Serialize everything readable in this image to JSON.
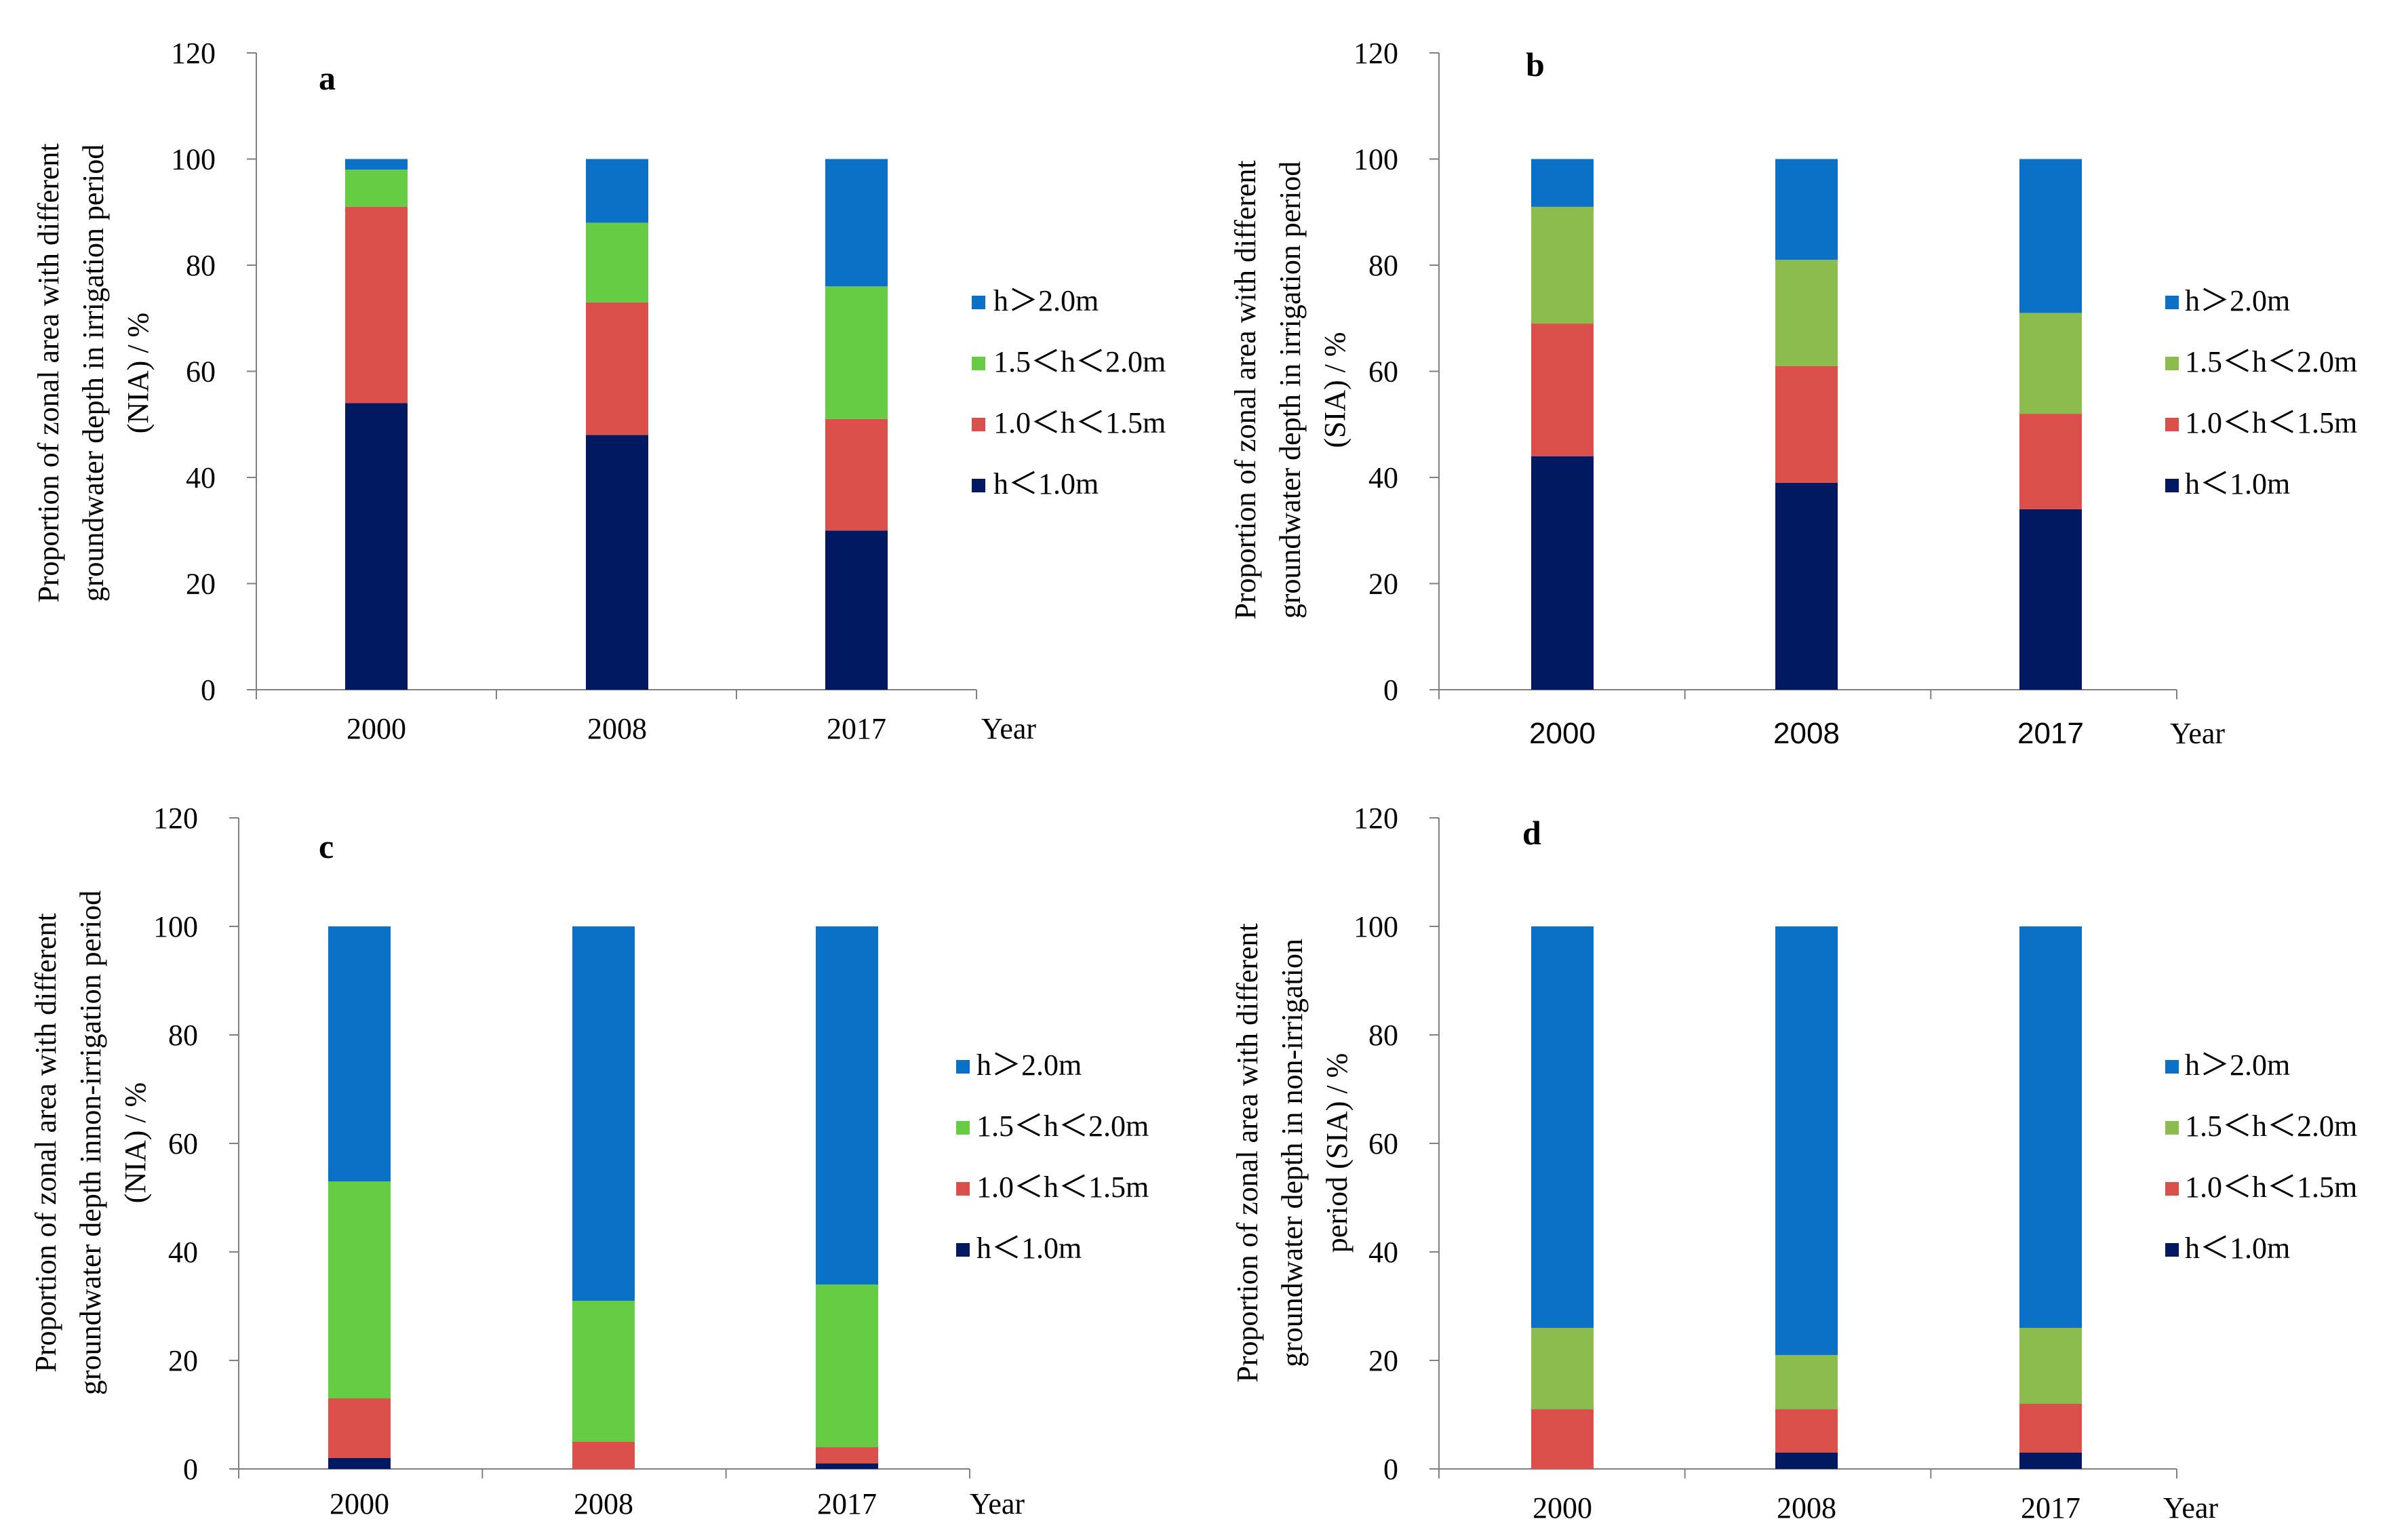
{
  "colors": {
    "axis": "#808080",
    "h_lt_1_0": "#001960",
    "range_1_0_1_5": "#DC504C",
    "range_1_5_2_0_bright": "#66CC44",
    "range_1_5_2_0_olive": "#8CBB4E",
    "h_gt_2_0": "#0A71C6"
  },
  "chart_data": [
    {
      "panel": "a",
      "type": "bar",
      "stacked": true,
      "categories": [
        "2000",
        "2008",
        "2017"
      ],
      "xlabel": "Year",
      "ylabel_lines": [
        "Proportion of zonal area with different",
        "groundwater depth in irrigation period",
        "(NIA) / %"
      ],
      "ylim": [
        0,
        120
      ],
      "yticks": [
        "0",
        "20",
        "40",
        "60",
        "80",
        "100",
        "120"
      ],
      "series": [
        {
          "name": "h＜1.0m",
          "values": [
            54,
            48,
            30
          ]
        },
        {
          "name": "1.0＜h＜1.5m",
          "values": [
            37,
            25,
            21
          ]
        },
        {
          "name": "1.5＜h＜2.0m",
          "values": [
            7,
            15,
            25
          ]
        },
        {
          "name": "h＞2.0m",
          "values": [
            2,
            12,
            24
          ]
        }
      ],
      "legend": [
        "h＞2.0m",
        "1.5＜h＜2.0m",
        "1.0＜h＜1.5m",
        "h＜1.0m"
      ]
    },
    {
      "panel": "b",
      "type": "bar",
      "stacked": true,
      "categories": [
        "2000",
        "2008",
        "2017"
      ],
      "xlabel": "Year",
      "ylabel_lines": [
        "Proportion of zonal area with different",
        "groundwater depth in irrigation period",
        "(SIA) / %"
      ],
      "ylim": [
        0,
        120
      ],
      "yticks": [
        "0",
        "20",
        "40",
        "60",
        "80",
        "100",
        "120"
      ],
      "series": [
        {
          "name": "h＜1.0m",
          "values": [
            44,
            39,
            34
          ]
        },
        {
          "name": "1.0＜h＜1.5m",
          "values": [
            25,
            22,
            18
          ]
        },
        {
          "name": "1.5＜h＜2.0m",
          "values": [
            22,
            20,
            19
          ]
        },
        {
          "name": "h＞2.0m",
          "values": [
            9,
            19,
            29
          ]
        }
      ],
      "legend": [
        "h＞2.0m",
        "1.5＜h＜2.0m",
        "1.0＜h＜1.5m",
        "h＜1.0m"
      ]
    },
    {
      "panel": "c",
      "type": "bar",
      "stacked": true,
      "categories": [
        "2000",
        "2008",
        "2017"
      ],
      "xlabel": "Year",
      "ylabel_lines": [
        "Proportion of zonal area with different",
        "groundwater depth innon-irrigation period",
        "(NIA) / %"
      ],
      "ylim": [
        0,
        120
      ],
      "yticks": [
        "0",
        "20",
        "40",
        "60",
        "80",
        "100",
        "120"
      ],
      "series": [
        {
          "name": "h＜1.0m",
          "values": [
            2,
            0,
            1
          ]
        },
        {
          "name": "1.0＜h＜1.5m",
          "values": [
            11,
            5,
            3
          ]
        },
        {
          "name": "1.5＜h＜2.0m",
          "values": [
            40,
            26,
            30
          ]
        },
        {
          "name": "h＞2.0m",
          "values": [
            47,
            69,
            66
          ]
        }
      ],
      "legend": [
        "h＞2.0m",
        "1.5＜h＜2.0m",
        "1.0＜h＜1.5m",
        "h＜1.0m"
      ]
    },
    {
      "panel": "d",
      "type": "bar",
      "stacked": true,
      "categories": [
        "2000",
        "2008",
        "2017"
      ],
      "xlabel": "Year",
      "ylabel_lines": [
        "Proportion of zonal area with different",
        "groundwater depth in non-irrigation",
        "period (SIA) / %"
      ],
      "ylim": [
        0,
        120
      ],
      "yticks": [
        "0",
        "20",
        "40",
        "60",
        "80",
        "100",
        "120"
      ],
      "series": [
        {
          "name": "h＜1.0m",
          "values": [
            0,
            3,
            3
          ]
        },
        {
          "name": "1.0＜h＜1.5m",
          "values": [
            11,
            8,
            9
          ]
        },
        {
          "name": "1.5＜h＜2.0m",
          "values": [
            15,
            10,
            14
          ]
        },
        {
          "name": "h＞2.0m",
          "values": [
            74,
            79,
            74
          ]
        }
      ],
      "legend": [
        "h＞2.0m",
        "1.5＜h＜2.0m",
        "1.0＜h＜1.5m",
        "h＜1.0m"
      ]
    }
  ]
}
